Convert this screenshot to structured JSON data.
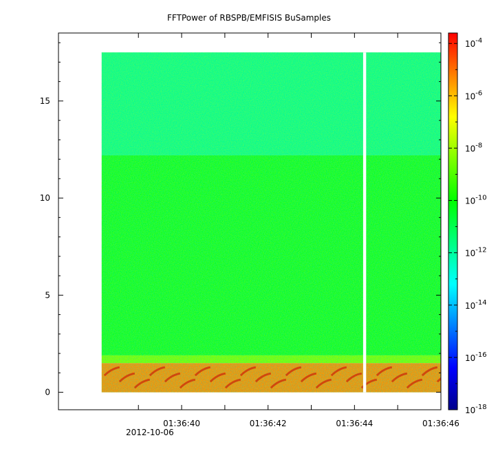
{
  "chart_data": {
    "type": "heatmap",
    "title": "FFTPower of RBSPB/EMFISIS  BuSamples",
    "xlabel": "",
    "ylabel": "",
    "x_ticks": [
      {
        "value": 0,
        "label": ""
      },
      {
        "value": 1,
        "label": "01:36:40"
      },
      {
        "value": 2,
        "label": ""
      },
      {
        "value": 3,
        "label": "01:36:42"
      },
      {
        "value": 4,
        "label": ""
      },
      {
        "value": 5,
        "label": "01:36:44"
      },
      {
        "value": 6,
        "label": ""
      },
      {
        "value": 7,
        "label": "01:36:46"
      }
    ],
    "x_range_seconds": [
      -1.85,
      7.0
    ],
    "x_date_label": "2012-10-06",
    "y_ticks": [
      0,
      5,
      10,
      15
    ],
    "ylim": [
      -0.9,
      18.5
    ],
    "data_extent": {
      "x_start_seconds": -0.85,
      "x_end_seconds": 7.0,
      "y_min": 0.0,
      "y_max": 17.5
    },
    "data_gap_seconds": [
      5.2,
      5.27
    ],
    "colorbar": {
      "scale": "log",
      "range_exponents": [
        -18,
        -3.6
      ],
      "tick_base": "10",
      "tick_exponents": [
        "-4",
        "-6",
        "-8",
        "-10",
        "-12",
        "-14",
        "-16",
        "-18"
      ],
      "colormap": [
        "#00008b",
        "#0000ff",
        "#0080ff",
        "#00ffff",
        "#00ff80",
        "#00ff00",
        "#80ff00",
        "#ffff00",
        "#ff8000",
        "#ff0000"
      ]
    },
    "bands": [
      {
        "y_from": 12.2,
        "y_to": 17.5,
        "log_power": -11.7
      },
      {
        "y_from": 1.9,
        "y_to": 12.2,
        "log_power": -10.4
      },
      {
        "y_from": 1.5,
        "y_to": 1.9,
        "log_power": -8.6
      },
      {
        "y_from": 0.0,
        "y_to": 1.5,
        "log_power": -5.2
      }
    ]
  }
}
